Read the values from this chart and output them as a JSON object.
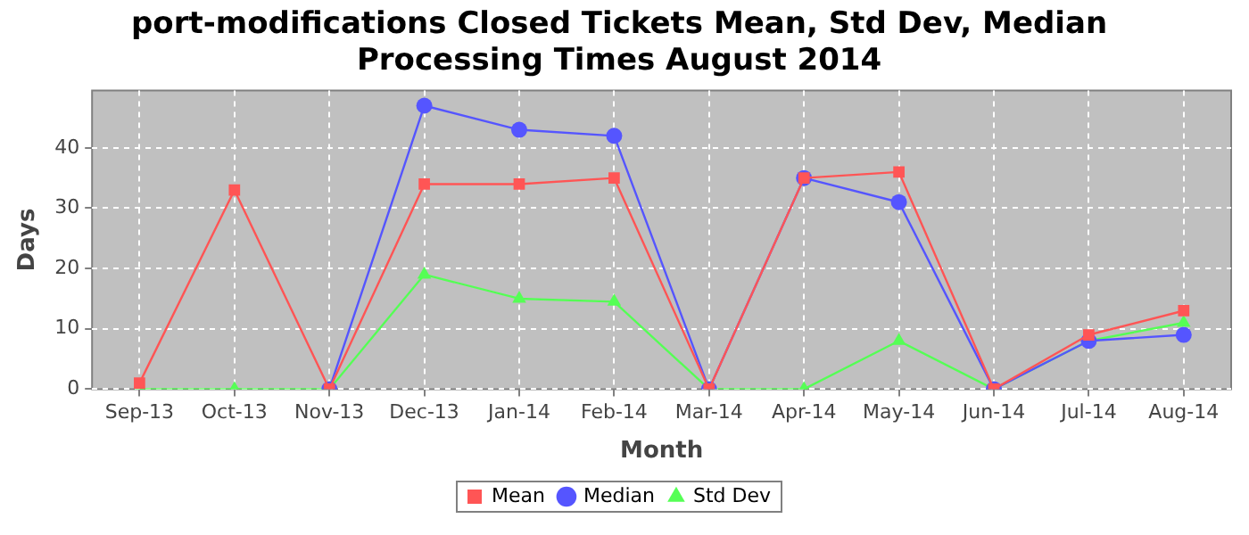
{
  "chart_data": {
    "type": "line",
    "title": "port-modifications Closed Tickets Mean, Std Dev, Median Processing Times August 2014",
    "xlabel": "Month",
    "ylabel": "Days",
    "categories": [
      "Sep-13",
      "Oct-13",
      "Nov-13",
      "Dec-13",
      "Jan-14",
      "Feb-14",
      "Mar-14",
      "Apr-14",
      "May-14",
      "Jun-14",
      "Jul-14",
      "Aug-14"
    ],
    "series": [
      {
        "name": "Mean",
        "color": "#ff5555",
        "marker": "square",
        "values": [
          1,
          33,
          0,
          34,
          34,
          35,
          0,
          35,
          36,
          0,
          9,
          13
        ]
      },
      {
        "name": "Median",
        "color": "#5555ff",
        "marker": "circle",
        "values": [
          null,
          null,
          0,
          47,
          43,
          42,
          0,
          35,
          31,
          0,
          8,
          9
        ]
      },
      {
        "name": "Std Dev",
        "color": "#55ff55",
        "marker": "triangle",
        "values": [
          0,
          0,
          0,
          19,
          15,
          14.5,
          0,
          0,
          8,
          0,
          8,
          11
        ]
      }
    ],
    "ylim": [
      0,
      49.5
    ],
    "yticks": [
      0,
      10,
      20,
      30,
      40
    ],
    "grid": true,
    "legend": "bottom",
    "line_style": "solid"
  }
}
